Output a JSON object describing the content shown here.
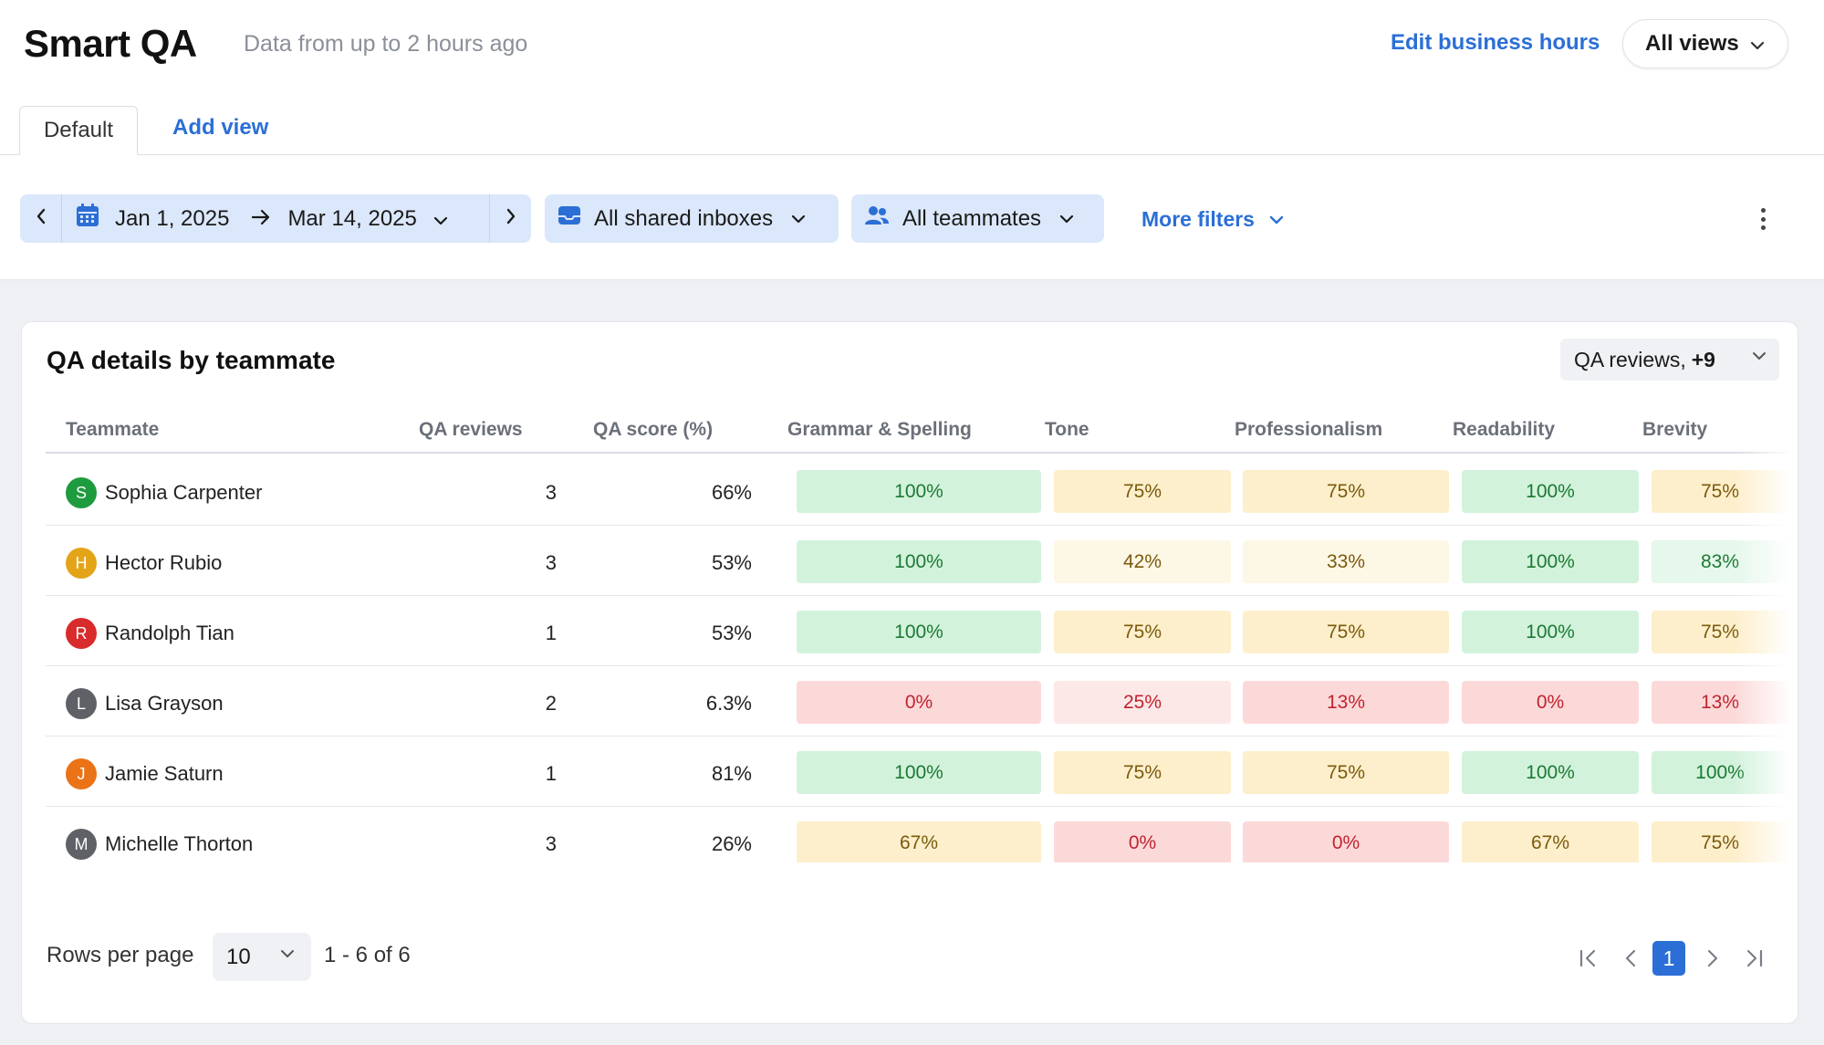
{
  "header": {
    "title": "Smart QA",
    "subtitle": "Data from up to 2 hours ago",
    "edit_hours_label": "Edit business hours",
    "views_label": "All views"
  },
  "tabs": {
    "default_label": "Default",
    "add_label": "Add view"
  },
  "filters": {
    "date_start": "Jan 1, 2025",
    "date_end": "Mar 14, 2025",
    "inboxes_label": "All shared inboxes",
    "teammates_label": "All teammates",
    "more_label": "More filters"
  },
  "card": {
    "title": "QA details by teammate",
    "metrics_label": "QA reviews,",
    "metrics_more": "+9"
  },
  "table": {
    "columns": [
      "Teammate",
      "QA reviews",
      "QA score (%)",
      "Grammar & Spelling",
      "Tone",
      "Professionalism",
      "Readability",
      "Brevity"
    ],
    "rows": [
      {
        "initial": "S",
        "avatar_color": "#1e9b3e",
        "name": "Sophia Carpenter",
        "reviews": "3",
        "score": "66%",
        "cells": [
          "100%",
          "75%",
          "75%",
          "100%",
          "75%"
        ]
      },
      {
        "initial": "H",
        "avatar_color": "#e3a418",
        "name": "Hector Rubio",
        "reviews": "3",
        "score": "53%",
        "cells": [
          "100%",
          "42%",
          "33%",
          "100%",
          "83%"
        ]
      },
      {
        "initial": "R",
        "avatar_color": "#d92b2b",
        "name": "Randolph Tian",
        "reviews": "1",
        "score": "53%",
        "cells": [
          "100%",
          "75%",
          "75%",
          "100%",
          "75%"
        ]
      },
      {
        "initial": "L",
        "avatar_color": "#5f6166",
        "name": "Lisa Grayson",
        "reviews": "2",
        "score": "6.3%",
        "cells": [
          "0%",
          "25%",
          "13%",
          "0%",
          "13%"
        ]
      },
      {
        "initial": "J",
        "avatar_color": "#ea7317",
        "name": "Jamie Saturn",
        "reviews": "1",
        "score": "81%",
        "cells": [
          "100%",
          "75%",
          "75%",
          "100%",
          "100%"
        ]
      },
      {
        "initial": "M",
        "avatar_color": "#5f6166",
        "name": "Michelle Thorton",
        "reviews": "3",
        "score": "26%",
        "cells": [
          "67%",
          "0%",
          "0%",
          "67%",
          "75%"
        ]
      }
    ]
  },
  "pagination": {
    "rows_per_page_label": "Rows per page",
    "rows_per_page_value": "10",
    "range_label": "1 - 6 of 6",
    "current_page": "1"
  },
  "colors": {
    "accent": "#2b6fd6",
    "filter_bg": "#dbe7fa",
    "good_bg": "#d3f2dc",
    "good_text": "#1b7a33",
    "light_good_bg": "#e6f7eb",
    "mid_bg": "#fdefcc",
    "mid_text": "#7a5a0c",
    "light_mid_bg": "#fdf7e6",
    "bad_bg": "#fcd9d9",
    "bad_text": "#c0242e",
    "light_bad_bg": "#fde8e8"
  }
}
